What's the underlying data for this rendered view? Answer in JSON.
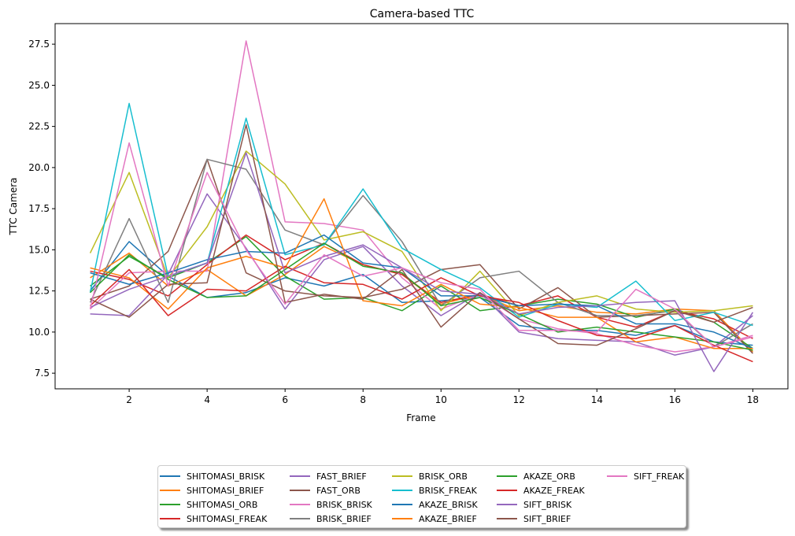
{
  "chart_data": {
    "type": "line",
    "title": "Camera-based TTC",
    "xlabel": "Frame",
    "ylabel": "TTC Camera",
    "xlim": [
      0.1,
      18.9
    ],
    "ylim": [
      6.55,
      28.75
    ],
    "xticks": [
      2,
      4,
      6,
      8,
      10,
      12,
      14,
      16,
      18
    ],
    "yticks": [
      7.5,
      10.0,
      12.5,
      15.0,
      17.5,
      20.0,
      22.5,
      25.0,
      27.5
    ],
    "grid": false,
    "legend_position": "below-center",
    "x": [
      1,
      2,
      3,
      4,
      5,
      6,
      7,
      8,
      9,
      10,
      11,
      12,
      13,
      14,
      15,
      16,
      17,
      18
    ],
    "series": [
      {
        "name": "SHITOMASI_BRISK",
        "color": "#1f77b4",
        "values": [
          12.5,
          15.5,
          13.4,
          12.1,
          12.4,
          13.3,
          12.8,
          13.5,
          11.8,
          11.9,
          12.1,
          10.4,
          10.1,
          10.1,
          9.8,
          10.4,
          9.4,
          9.2
        ]
      },
      {
        "name": "SHITOMASI_BRIEF",
        "color": "#ff7f0e",
        "values": [
          13.3,
          14.8,
          12.8,
          13.8,
          12.2,
          13.5,
          15.2,
          14.1,
          13.5,
          11.7,
          12.3,
          11.3,
          11.6,
          11.2,
          11.1,
          11.4,
          11.3,
          8.8
        ]
      },
      {
        "name": "SHITOMASI_ORB",
        "color": "#2ca02c",
        "values": [
          12.8,
          14.6,
          13.3,
          14.2,
          15.8,
          13.4,
          12.0,
          12.1,
          11.3,
          12.8,
          11.3,
          11.6,
          12.0,
          11.7,
          10.9,
          11.4,
          10.6,
          9.0
        ]
      },
      {
        "name": "SHITOMASI_FREAK",
        "color": "#d62728",
        "values": [
          13.7,
          13.2,
          12.2,
          14.1,
          15.9,
          14.4,
          15.4,
          14.1,
          13.5,
          11.8,
          12.3,
          11.6,
          12.2,
          10.9,
          10.3,
          11.3,
          10.8,
          9.6
        ]
      },
      {
        "name": "FAST_BRIEF",
        "color": "#9467bd",
        "values": [
          11.1,
          11.0,
          13.5,
          18.4,
          15.1,
          11.4,
          14.4,
          15.2,
          12.8,
          11.0,
          12.4,
          10.0,
          9.6,
          9.5,
          9.4,
          8.6,
          9.1,
          11.0
        ]
      },
      {
        "name": "FAST_ORB",
        "color": "#8c564b",
        "values": [
          12.0,
          12.8,
          14.9,
          20.5,
          13.6,
          12.5,
          12.2,
          12.1,
          12.6,
          13.8,
          14.1,
          11.4,
          12.7,
          10.9,
          11.0,
          11.1,
          11.2,
          8.7
        ]
      },
      {
        "name": "BRISK_BRISK",
        "color": "#e377c2",
        "values": [
          11.4,
          13.6,
          13.7,
          13.7,
          27.7,
          16.7,
          16.6,
          16.2,
          13.3,
          11.4,
          12.3,
          10.8,
          10.2,
          9.9,
          9.2,
          8.8,
          9.1,
          9.8
        ]
      },
      {
        "name": "BRISK_BRIEF",
        "color": "#7f7f7f",
        "values": [
          11.8,
          16.9,
          11.8,
          20.5,
          19.9,
          16.2,
          15.3,
          18.3,
          15.5,
          11.6,
          13.3,
          13.7,
          11.8,
          11.0,
          11.0,
          11.3,
          9.1,
          10.5
        ]
      },
      {
        "name": "BRISK_ORB",
        "color": "#bcbd22",
        "values": [
          14.8,
          19.7,
          13.3,
          16.4,
          21.0,
          19.0,
          15.6,
          16.1,
          14.9,
          11.3,
          13.7,
          11.0,
          11.8,
          12.2,
          11.4,
          11.2,
          11.3,
          11.6
        ]
      },
      {
        "name": "BRISK_FREAK",
        "color": "#17becf",
        "values": [
          12.4,
          23.9,
          13.4,
          14.2,
          23.0,
          14.7,
          15.3,
          18.7,
          15.1,
          13.8,
          12.7,
          10.9,
          11.7,
          11.5,
          13.1,
          10.7,
          11.2,
          10.4
        ]
      },
      {
        "name": "AKAZE_BRISK",
        "color": "#1f77b4",
        "values": [
          13.6,
          12.9,
          13.6,
          14.4,
          14.9,
          14.8,
          15.9,
          14.2,
          13.9,
          12.2,
          12.2,
          11.6,
          11.7,
          11.6,
          10.5,
          10.5,
          10.0,
          9.0
        ]
      },
      {
        "name": "AKAZE_BRIEF",
        "color": "#ff7f0e",
        "values": [
          13.9,
          13.3,
          11.4,
          13.9,
          14.6,
          13.9,
          18.1,
          11.9,
          11.6,
          12.9,
          11.7,
          11.5,
          10.9,
          10.9,
          9.4,
          9.7,
          9.0,
          9.0
        ]
      },
      {
        "name": "AKAZE_ORB",
        "color": "#2ca02c",
        "values": [
          12.4,
          14.7,
          13.2,
          12.1,
          12.2,
          13.8,
          15.4,
          14.0,
          13.6,
          11.6,
          12.1,
          11.1,
          10.0,
          10.3,
          10.0,
          9.7,
          9.4,
          8.9
        ]
      },
      {
        "name": "AKAZE_FREAK",
        "color": "#d62728",
        "values": [
          11.6,
          13.8,
          11.0,
          12.6,
          12.5,
          14.0,
          13.0,
          12.9,
          12.0,
          13.3,
          12.2,
          11.8,
          10.7,
          9.8,
          9.6,
          10.4,
          9.2,
          8.2
        ]
      },
      {
        "name": "SIFT_BRISK",
        "color": "#9467bd",
        "values": [
          11.5,
          12.6,
          13.4,
          14.2,
          20.9,
          13.6,
          14.6,
          15.3,
          13.9,
          12.5,
          12.3,
          11.1,
          11.5,
          11.6,
          11.8,
          11.9,
          7.6,
          11.2
        ]
      },
      {
        "name": "SIFT_BRIEF",
        "color": "#8c564b",
        "values": [
          12.0,
          10.9,
          12.9,
          13.0,
          22.6,
          11.8,
          12.3,
          12.0,
          13.8,
          10.3,
          12.4,
          10.8,
          9.3,
          9.2,
          10.2,
          11.3,
          10.6,
          11.5
        ]
      },
      {
        "name": "SIFT_FREAK",
        "color": "#e377c2",
        "values": [
          11.4,
          21.5,
          12.8,
          19.7,
          15.0,
          11.7,
          14.7,
          13.4,
          13.9,
          13.0,
          12.6,
          10.1,
          10.1,
          10.0,
          12.6,
          11.4,
          9.1,
          9.7
        ]
      }
    ]
  }
}
